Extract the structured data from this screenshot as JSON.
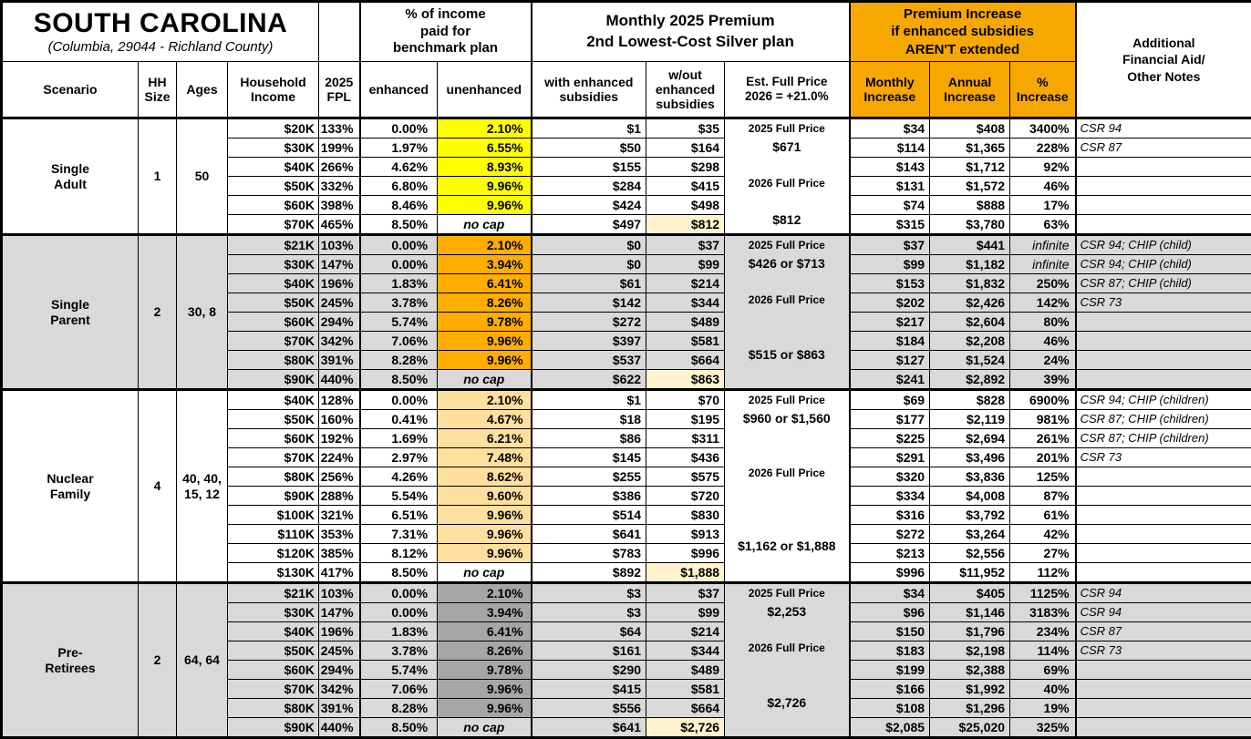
{
  "title": "SOUTH CAROLINA",
  "subtitle": "(Columbia, 29044 - Richland County)",
  "header_groups": {
    "income_pct": "% of income\npaid for\nbenchmark plan",
    "premium": "Monthly 2025 Premium\n2nd Lowest-Cost Silver plan",
    "increase": "Premium Increase\nif enhanced subsidies\nAREN'T extended",
    "notes": "Additional\nFinancial Aid/\nOther Notes"
  },
  "columns": {
    "scenario": "Scenario",
    "hh_size": "HH\nSize",
    "ages": "Ages",
    "income": "Household\nIncome",
    "fpl": "2025\nFPL",
    "enhanced": "enhanced",
    "unenhanced": "unenhanced",
    "with_sub": "with enhanced\nsubsidies",
    "without_sub": "w/out\nenhanced\nsubsidies",
    "full_price": "Est. Full Price\n2026 = +21.0%",
    "monthly": "Monthly\nIncrease",
    "annual": "Annual\nIncrease",
    "pct": "%\nIncrease"
  },
  "colors": {
    "header_orange": "#F7A800",
    "yellow": "#FFFF00",
    "orange": "#FFAE00",
    "tan": "#FFDF9E",
    "dark_gray": "#A6A6A6",
    "section_gray": "#D9D9D9",
    "white": "#FFFFFF",
    "highlight_cream": "#FFF2CC"
  },
  "no_cap_label": "no cap",
  "infinite_label": "infinite",
  "sections": [
    {
      "scenario": "Single\nAdult",
      "hh_size": "1",
      "ages": "50",
      "bg": "#FFFFFF",
      "unenhanced_bg": "#FFFF00",
      "full_price_lines": [
        "2025 Full Price",
        "$671",
        "",
        "2026 Full Price",
        "",
        "$812"
      ],
      "rows": [
        {
          "income": "$20K",
          "fpl": "133%",
          "enhanced": "0.00%",
          "unenhanced": "2.10%",
          "with_sub": "$1",
          "without_sub": "$35",
          "monthly": "$34",
          "annual": "$408",
          "pct": "3400%",
          "notes": "CSR 94"
        },
        {
          "income": "$30K",
          "fpl": "199%",
          "enhanced": "1.97%",
          "unenhanced": "6.55%",
          "with_sub": "$50",
          "without_sub": "$164",
          "monthly": "$114",
          "annual": "$1,365",
          "pct": "228%",
          "notes": "CSR 87"
        },
        {
          "income": "$40K",
          "fpl": "266%",
          "enhanced": "4.62%",
          "unenhanced": "8.93%",
          "with_sub": "$155",
          "without_sub": "$298",
          "monthly": "$143",
          "annual": "$1,712",
          "pct": "92%",
          "notes": ""
        },
        {
          "income": "$50K",
          "fpl": "332%",
          "enhanced": "6.80%",
          "unenhanced": "9.96%",
          "with_sub": "$284",
          "without_sub": "$415",
          "monthly": "$131",
          "annual": "$1,572",
          "pct": "46%",
          "notes": ""
        },
        {
          "income": "$60K",
          "fpl": "398%",
          "enhanced": "8.46%",
          "unenhanced": "9.96%",
          "with_sub": "$424",
          "without_sub": "$498",
          "monthly": "$74",
          "annual": "$888",
          "pct": "17%",
          "notes": ""
        },
        {
          "income": "$70K",
          "fpl": "465%",
          "enhanced": "8.50%",
          "unenhanced": "no cap",
          "with_sub": "$497",
          "without_sub": "$812",
          "monthly": "$315",
          "annual": "$3,780",
          "pct": "63%",
          "notes": ""
        }
      ]
    },
    {
      "scenario": "Single\nParent",
      "hh_size": "2",
      "ages": "30, 8",
      "bg": "#D9D9D9",
      "unenhanced_bg": "#FFAE00",
      "full_price_lines": [
        "2025 Full Price",
        "$426 or $713",
        "",
        "2026 Full Price",
        "",
        "",
        "$515 or $863",
        ""
      ],
      "rows": [
        {
          "income": "$21K",
          "fpl": "103%",
          "enhanced": "0.00%",
          "unenhanced": "2.10%",
          "with_sub": "$0",
          "without_sub": "$37",
          "monthly": "$37",
          "annual": "$441",
          "pct": "infinite",
          "notes": "CSR 94; CHIP (child)"
        },
        {
          "income": "$30K",
          "fpl": "147%",
          "enhanced": "0.00%",
          "unenhanced": "3.94%",
          "with_sub": "$0",
          "without_sub": "$99",
          "monthly": "$99",
          "annual": "$1,182",
          "pct": "infinite",
          "notes": "CSR 94; CHIP (child)"
        },
        {
          "income": "$40K",
          "fpl": "196%",
          "enhanced": "1.83%",
          "unenhanced": "6.41%",
          "with_sub": "$61",
          "without_sub": "$214",
          "monthly": "$153",
          "annual": "$1,832",
          "pct": "250%",
          "notes": "CSR 87; CHIP (child)"
        },
        {
          "income": "$50K",
          "fpl": "245%",
          "enhanced": "3.78%",
          "unenhanced": "8.26%",
          "with_sub": "$142",
          "without_sub": "$344",
          "monthly": "$202",
          "annual": "$2,426",
          "pct": "142%",
          "notes": "CSR 73"
        },
        {
          "income": "$60K",
          "fpl": "294%",
          "enhanced": "5.74%",
          "unenhanced": "9.78%",
          "with_sub": "$272",
          "without_sub": "$489",
          "monthly": "$217",
          "annual": "$2,604",
          "pct": "80%",
          "notes": ""
        },
        {
          "income": "$70K",
          "fpl": "342%",
          "enhanced": "7.06%",
          "unenhanced": "9.96%",
          "with_sub": "$397",
          "without_sub": "$581",
          "monthly": "$184",
          "annual": "$2,208",
          "pct": "46%",
          "notes": ""
        },
        {
          "income": "$80K",
          "fpl": "391%",
          "enhanced": "8.28%",
          "unenhanced": "9.96%",
          "with_sub": "$537",
          "without_sub": "$664",
          "monthly": "$127",
          "annual": "$1,524",
          "pct": "24%",
          "notes": ""
        },
        {
          "income": "$90K",
          "fpl": "440%",
          "enhanced": "8.50%",
          "unenhanced": "no cap",
          "with_sub": "$622",
          "without_sub": "$863",
          "monthly": "$241",
          "annual": "$2,892",
          "pct": "39%",
          "notes": ""
        }
      ]
    },
    {
      "scenario": "Nuclear\nFamily",
      "hh_size": "4",
      "ages": "40, 40,\n15, 12",
      "bg": "#FFFFFF",
      "unenhanced_bg": "#FFDF9E",
      "full_price_lines": [
        "2025 Full Price",
        "$960 or $1,560",
        "",
        "",
        "2026 Full Price",
        "",
        "",
        "",
        "$1,162 or $1,888",
        ""
      ],
      "rows": [
        {
          "income": "$40K",
          "fpl": "128%",
          "enhanced": "0.00%",
          "unenhanced": "2.10%",
          "with_sub": "$1",
          "without_sub": "$70",
          "monthly": "$69",
          "annual": "$828",
          "pct": "6900%",
          "notes": "CSR 94; CHIP (children)"
        },
        {
          "income": "$50K",
          "fpl": "160%",
          "enhanced": "0.41%",
          "unenhanced": "4.67%",
          "with_sub": "$18",
          "without_sub": "$195",
          "monthly": "$177",
          "annual": "$2,119",
          "pct": "981%",
          "notes": "CSR 87; CHIP (children)"
        },
        {
          "income": "$60K",
          "fpl": "192%",
          "enhanced": "1.69%",
          "unenhanced": "6.21%",
          "with_sub": "$86",
          "without_sub": "$311",
          "monthly": "$225",
          "annual": "$2,694",
          "pct": "261%",
          "notes": "CSR 87; CHIP (children)"
        },
        {
          "income": "$70K",
          "fpl": "224%",
          "enhanced": "2.97%",
          "unenhanced": "7.48%",
          "with_sub": "$145",
          "without_sub": "$436",
          "monthly": "$291",
          "annual": "$3,496",
          "pct": "201%",
          "notes": "CSR 73"
        },
        {
          "income": "$80K",
          "fpl": "256%",
          "enhanced": "4.26%",
          "unenhanced": "8.62%",
          "with_sub": "$255",
          "without_sub": "$575",
          "monthly": "$320",
          "annual": "$3,836",
          "pct": "125%",
          "notes": ""
        },
        {
          "income": "$90K",
          "fpl": "288%",
          "enhanced": "5.54%",
          "unenhanced": "9.60%",
          "with_sub": "$386",
          "without_sub": "$720",
          "monthly": "$334",
          "annual": "$4,008",
          "pct": "87%",
          "notes": ""
        },
        {
          "income": "$100K",
          "fpl": "321%",
          "enhanced": "6.51%",
          "unenhanced": "9.96%",
          "with_sub": "$514",
          "without_sub": "$830",
          "monthly": "$316",
          "annual": "$3,792",
          "pct": "61%",
          "notes": ""
        },
        {
          "income": "$110K",
          "fpl": "353%",
          "enhanced": "7.31%",
          "unenhanced": "9.96%",
          "with_sub": "$641",
          "without_sub": "$913",
          "monthly": "$272",
          "annual": "$3,264",
          "pct": "42%",
          "notes": ""
        },
        {
          "income": "$120K",
          "fpl": "385%",
          "enhanced": "8.12%",
          "unenhanced": "9.96%",
          "with_sub": "$783",
          "without_sub": "$996",
          "monthly": "$213",
          "annual": "$2,556",
          "pct": "27%",
          "notes": ""
        },
        {
          "income": "$130K",
          "fpl": "417%",
          "enhanced": "8.50%",
          "unenhanced": "no cap",
          "with_sub": "$892",
          "without_sub": "$1,888",
          "monthly": "$996",
          "annual": "$11,952",
          "pct": "112%",
          "notes": ""
        }
      ]
    },
    {
      "scenario": "Pre-\nRetirees",
      "hh_size": "2",
      "ages": "64, 64",
      "bg": "#D9D9D9",
      "unenhanced_bg": "#A6A6A6",
      "full_price_lines": [
        "2025 Full Price",
        "$2,253",
        "",
        "2026 Full Price",
        "",
        "",
        "$2,726",
        ""
      ],
      "rows": [
        {
          "income": "$21K",
          "fpl": "103%",
          "enhanced": "0.00%",
          "unenhanced": "2.10%",
          "with_sub": "$3",
          "without_sub": "$37",
          "monthly": "$34",
          "annual": "$405",
          "pct": "1125%",
          "notes": "CSR 94"
        },
        {
          "income": "$30K",
          "fpl": "147%",
          "enhanced": "0.00%",
          "unenhanced": "3.94%",
          "with_sub": "$3",
          "without_sub": "$99",
          "monthly": "$96",
          "annual": "$1,146",
          "pct": "3183%",
          "notes": "CSR 94"
        },
        {
          "income": "$40K",
          "fpl": "196%",
          "enhanced": "1.83%",
          "unenhanced": "6.41%",
          "with_sub": "$64",
          "without_sub": "$214",
          "monthly": "$150",
          "annual": "$1,796",
          "pct": "234%",
          "notes": "CSR 87"
        },
        {
          "income": "$50K",
          "fpl": "245%",
          "enhanced": "3.78%",
          "unenhanced": "8.26%",
          "with_sub": "$161",
          "without_sub": "$344",
          "monthly": "$183",
          "annual": "$2,198",
          "pct": "114%",
          "notes": "CSR 73"
        },
        {
          "income": "$60K",
          "fpl": "294%",
          "enhanced": "5.74%",
          "unenhanced": "9.78%",
          "with_sub": "$290",
          "without_sub": "$489",
          "monthly": "$199",
          "annual": "$2,388",
          "pct": "69%",
          "notes": ""
        },
        {
          "income": "$70K",
          "fpl": "342%",
          "enhanced": "7.06%",
          "unenhanced": "9.96%",
          "with_sub": "$415",
          "without_sub": "$581",
          "monthly": "$166",
          "annual": "$1,992",
          "pct": "40%",
          "notes": ""
        },
        {
          "income": "$80K",
          "fpl": "391%",
          "enhanced": "8.28%",
          "unenhanced": "9.96%",
          "with_sub": "$556",
          "without_sub": "$664",
          "monthly": "$108",
          "annual": "$1,296",
          "pct": "19%",
          "notes": ""
        },
        {
          "income": "$90K",
          "fpl": "440%",
          "enhanced": "8.50%",
          "unenhanced": "no cap",
          "with_sub": "$641",
          "without_sub": "$2,726",
          "monthly": "$2,085",
          "annual": "$25,020",
          "pct": "325%",
          "notes": ""
        }
      ]
    }
  ]
}
